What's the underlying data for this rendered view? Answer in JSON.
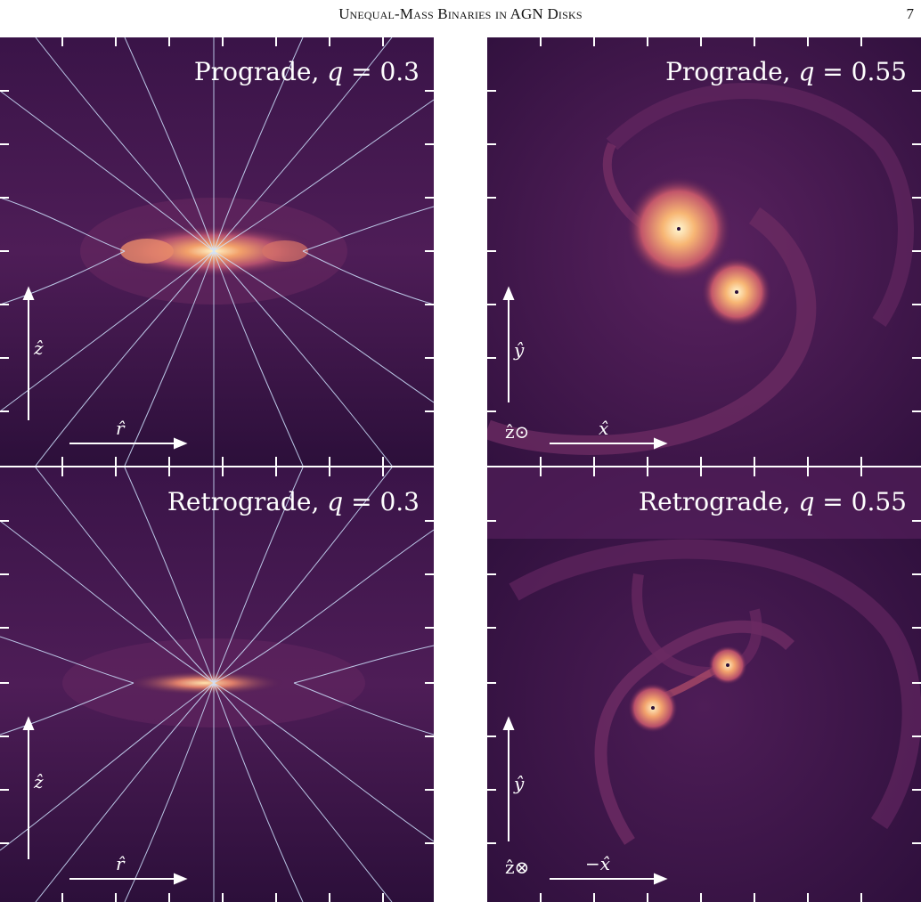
{
  "header": {
    "running_title_first": "U",
    "running_title_rest": "nequal-Mass Binaries in AGN Disks",
    "page_number": "7"
  },
  "panels": {
    "top_left": {
      "title": "Prograde, ",
      "q_label": "q",
      "q_value": " = 0.3",
      "x_axis": "r̂",
      "y_axis": "ẑ"
    },
    "top_right": {
      "title": "Prograde, ",
      "q_label": "q",
      "q_value": " = 0.55",
      "x_axis": "x̂",
      "y_axis": "ŷ",
      "corner": "ẑ⊙"
    },
    "bottom_left": {
      "title": "Retrograde, ",
      "q_label": "q",
      "q_value": " = 0.3",
      "x_axis": "r̂",
      "y_axis": "ẑ"
    },
    "bottom_right": {
      "title": "Retrograde, ",
      "q_label": "q",
      "q_value": " = 0.55",
      "x_axis": "−x̂",
      "y_axis": "ŷ",
      "corner": "ẑ⊗"
    }
  },
  "colors": {
    "background_dark": "#2a0f38",
    "background_mid": "#4a1a52",
    "disk_glow": "#f3a36d",
    "core": "#fff1c2",
    "streamline": "#cfe3ff"
  }
}
